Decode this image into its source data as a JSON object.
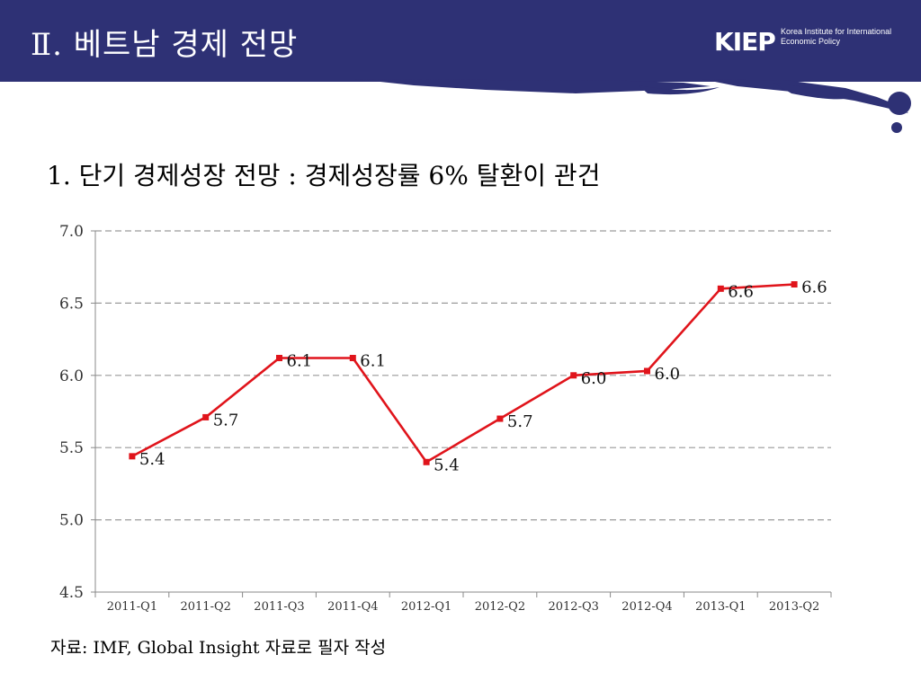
{
  "header": {
    "title": "Ⅱ. 베트남 경제 전망",
    "logo_mark": "KIEP",
    "logo_line1": "Korea Institute for International",
    "logo_line2": "Economic Policy"
  },
  "subtitle": "1. 단기 경제성장 전망 : 경제성장률 6% 탈환이 관건",
  "source": "자료: IMF, Global Insight 자료로 필자 작성",
  "colors": {
    "header_bg": "#2e3175",
    "series": "#e0141b",
    "grid": "#9a9a9a"
  },
  "chart_data": {
    "type": "line",
    "categories": [
      "2011-Q1",
      "2011-Q2",
      "2011-Q3",
      "2011-Q4",
      "2012-Q1",
      "2012-Q2",
      "2012-Q3",
      "2012-Q4",
      "2013-Q1",
      "2013-Q2"
    ],
    "series": [
      {
        "values": [
          5.44,
          5.71,
          6.12,
          6.12,
          5.4,
          5.7,
          6.0,
          6.03,
          6.6,
          6.63
        ]
      }
    ],
    "data_labels": [
      "5.4",
      "5.7",
      "6.1",
      "6.1",
      "5.4",
      "5.7",
      "6.0",
      "6.0",
      "6.6",
      "6.6"
    ],
    "y_ticks": [
      "4.5",
      "5.0",
      "5.5",
      "6.0",
      "6.5",
      "7.0"
    ],
    "ylim": [
      4.5,
      7.0
    ],
    "grid": true,
    "legend": false
  }
}
